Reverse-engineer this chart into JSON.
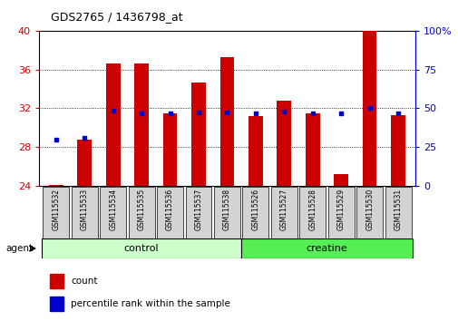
{
  "title": "GDS2765 / 1436798_at",
  "samples": [
    "GSM115532",
    "GSM115533",
    "GSM115534",
    "GSM115535",
    "GSM115536",
    "GSM115537",
    "GSM115538",
    "GSM115526",
    "GSM115527",
    "GSM115528",
    "GSM115529",
    "GSM115530",
    "GSM115531"
  ],
  "count_values": [
    24.1,
    28.8,
    36.6,
    36.6,
    31.5,
    34.7,
    37.3,
    31.2,
    32.8,
    31.5,
    25.2,
    40.0,
    31.3
  ],
  "percentile_values": [
    30.0,
    31.0,
    48.5,
    47.0,
    46.5,
    47.5,
    47.5,
    47.0,
    48.0,
    47.0,
    46.5,
    50.5,
    47.0
  ],
  "y_min": 24,
  "y_max": 40,
  "y_ticks": [
    24,
    28,
    32,
    36,
    40
  ],
  "right_y_ticks": [
    0,
    25,
    50,
    75,
    100
  ],
  "right_y_labels": [
    "0",
    "25",
    "50",
    "75",
    "100%"
  ],
  "bar_color": "#cc0000",
  "dot_color": "#0000cc",
  "control_color": "#ccffcc",
  "creatine_color": "#55ee55",
  "control_samples": 7,
  "creatine_samples": 6,
  "left_tick_color": "#cc0000",
  "right_tick_color": "#0000cc",
  "agent_label": "agent",
  "control_label": "control",
  "creatine_label": "creatine",
  "legend_count": "count",
  "legend_percentile": "percentile rank within the sample",
  "bar_width": 0.5
}
